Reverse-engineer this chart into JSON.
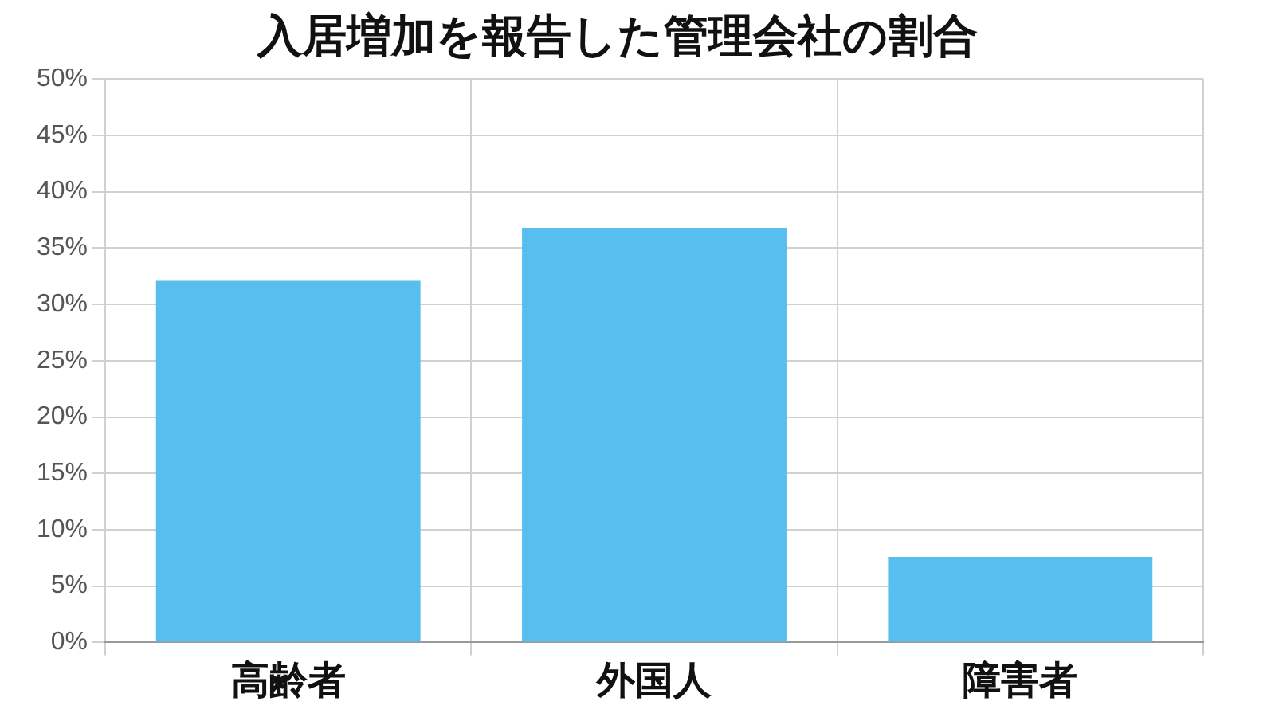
{
  "chart_data": {
    "type": "bar",
    "title": "入居増加を報告した管理会社の割合",
    "categories": [
      "高齢者",
      "外国人",
      "障害者"
    ],
    "values": [
      32.1,
      36.8,
      7.6
    ],
    "color": "#56bfef",
    "ylim": [
      0,
      50
    ],
    "yticks": [
      {
        "value": 0,
        "label": "0%"
      },
      {
        "value": 5,
        "label": "5%"
      },
      {
        "value": 10,
        "label": "10%"
      },
      {
        "value": 15,
        "label": "15%"
      },
      {
        "value": 20,
        "label": "20%"
      },
      {
        "value": 25,
        "label": "25%"
      },
      {
        "value": 30,
        "label": "30%"
      },
      {
        "value": 35,
        "label": "35%"
      },
      {
        "value": 40,
        "label": "40%"
      },
      {
        "value": 45,
        "label": "45%"
      },
      {
        "value": 50,
        "label": "50%"
      }
    ],
    "grid": true
  }
}
